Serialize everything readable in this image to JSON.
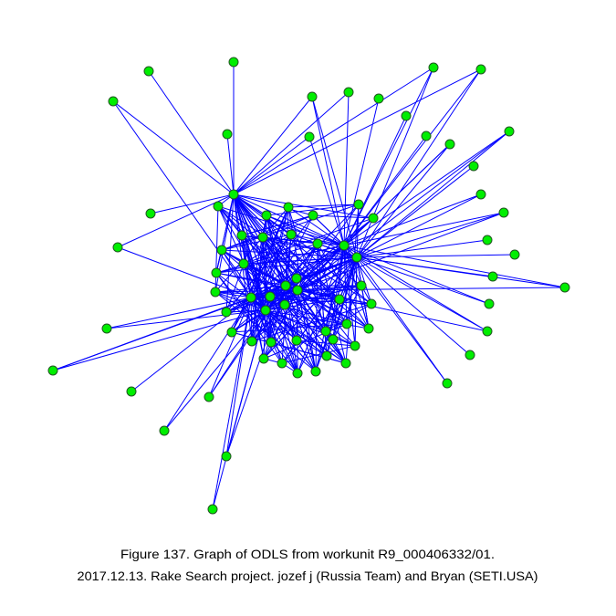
{
  "caption": {
    "line1": "Figure 137. Graph of ODLS from workunit R9_000406332/01.",
    "line2": "2017.12.13. Rake Search project. jozef j (Russia Team) and Bryan (SETI.USA)"
  }
}
